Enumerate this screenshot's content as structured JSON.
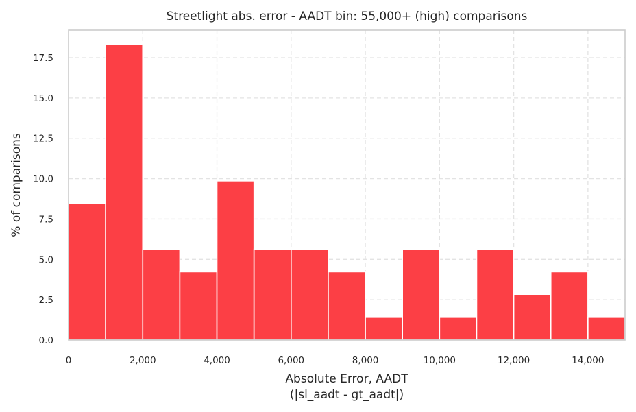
{
  "chart_data": {
    "type": "bar",
    "title": "Streetlight abs. error - AADT bin: 55,000+ (high) comparisons",
    "xlabel_lines": [
      "Absolute Error, AADT",
      "(|sl_aadt - gt_aadt|)"
    ],
    "ylabel": "% of comparisons",
    "bar_color": "#fc3f45",
    "xlim": [
      0,
      15000
    ],
    "ylim": [
      0,
      19.2
    ],
    "x_ticks": [
      0,
      2000,
      4000,
      6000,
      8000,
      10000,
      12000,
      14000
    ],
    "x_tick_labels": [
      "0",
      "2,000",
      "4,000",
      "6,000",
      "8,000",
      "10,000",
      "12,000",
      "14,000"
    ],
    "y_ticks": [
      0,
      2.5,
      5,
      7.5,
      10,
      12.5,
      15,
      17.5
    ],
    "y_tick_labels": [
      "0.0",
      "2.5",
      "5.0",
      "7.5",
      "10.0",
      "12.5",
      "15.0",
      "17.5"
    ],
    "grid": true,
    "bins": [
      {
        "x0": 0,
        "x1": 1000,
        "value": 8.45
      },
      {
        "x0": 1000,
        "x1": 2000,
        "value": 18.3
      },
      {
        "x0": 2000,
        "x1": 3000,
        "value": 5.63
      },
      {
        "x0": 3000,
        "x1": 4000,
        "value": 4.23
      },
      {
        "x0": 4000,
        "x1": 5000,
        "value": 9.86
      },
      {
        "x0": 5000,
        "x1": 6000,
        "value": 5.63
      },
      {
        "x0": 6000,
        "x1": 7000,
        "value": 5.63
      },
      {
        "x0": 7000,
        "x1": 8000,
        "value": 4.23
      },
      {
        "x0": 8000,
        "x1": 9000,
        "value": 1.41
      },
      {
        "x0": 9000,
        "x1": 10000,
        "value": 5.63
      },
      {
        "x0": 10000,
        "x1": 11000,
        "value": 1.41
      },
      {
        "x0": 11000,
        "x1": 12000,
        "value": 5.63
      },
      {
        "x0": 12000,
        "x1": 13000,
        "value": 2.82
      },
      {
        "x0": 13000,
        "x1": 14000,
        "value": 4.23
      },
      {
        "x0": 14000,
        "x1": 15000,
        "value": 1.41
      }
    ]
  }
}
